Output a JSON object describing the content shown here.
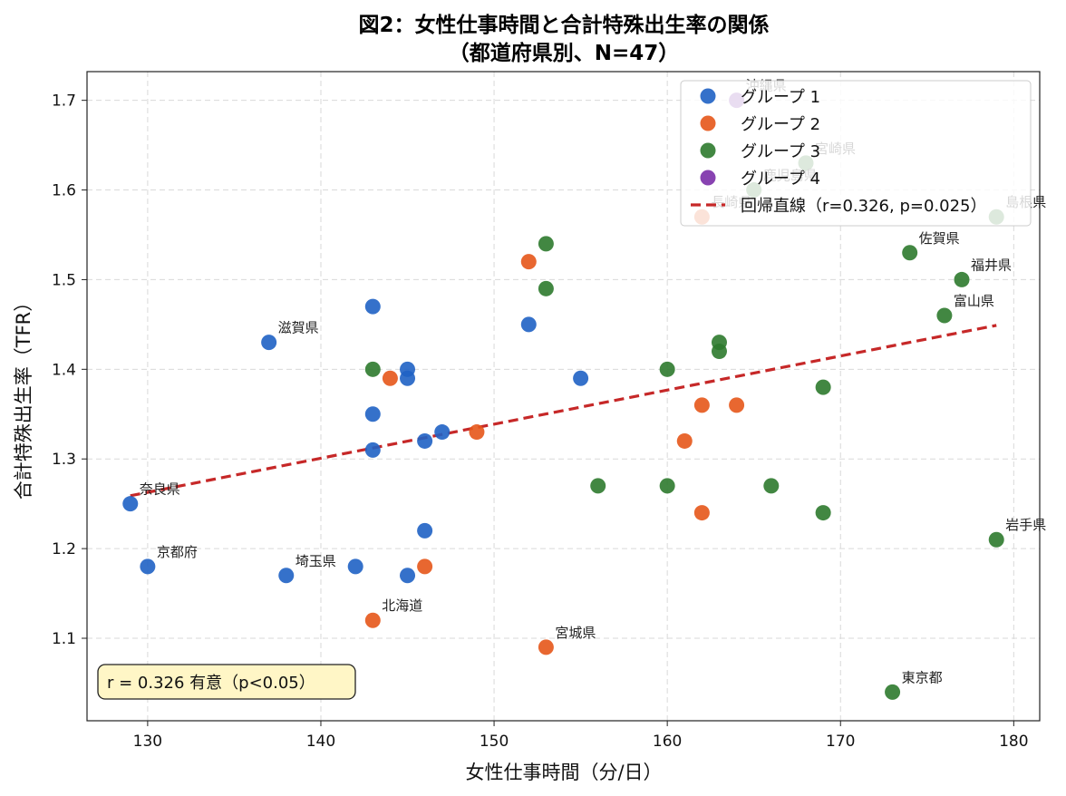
{
  "chart_data": {
    "type": "scatter",
    "title": "図2：女性仕事時間と合計特殊出生率の関係",
    "subtitle": "（都道府県別、N=47）",
    "xlabel": "女性仕事時間（分/日）",
    "ylabel": "合計特殊出生率（TFR）",
    "xlim": [
      126.5,
      181.5
    ],
    "ylim": [
      1.008,
      1.732
    ],
    "xticks": [
      130,
      140,
      150,
      160,
      170,
      180
    ],
    "yticks": [
      1.1,
      1.2,
      1.3,
      1.4,
      1.5,
      1.6,
      1.7
    ],
    "xtick_labels": [
      "130",
      "140",
      "150",
      "160",
      "170",
      "180"
    ],
    "ytick_labels": [
      "1.1",
      "1.2",
      "1.3",
      "1.4",
      "1.5",
      "1.6",
      "1.7"
    ],
    "grid": true,
    "legend_position": "top-right",
    "series": [
      {
        "name": "グループ 1",
        "color": "#1f62c4",
        "points": [
          {
            "x": 129,
            "y": 1.25,
            "label": "奈良県"
          },
          {
            "x": 130,
            "y": 1.18,
            "label": "京都府"
          },
          {
            "x": 137,
            "y": 1.43,
            "label": "滋賀県"
          },
          {
            "x": 138,
            "y": 1.17,
            "label": "埼玉県"
          },
          {
            "x": 142,
            "y": 1.18
          },
          {
            "x": 143,
            "y": 1.47
          },
          {
            "x": 143,
            "y": 1.35
          },
          {
            "x": 143,
            "y": 1.31
          },
          {
            "x": 145,
            "y": 1.4
          },
          {
            "x": 145,
            "y": 1.39
          },
          {
            "x": 145,
            "y": 1.17
          },
          {
            "x": 146,
            "y": 1.32
          },
          {
            "x": 146,
            "y": 1.22
          },
          {
            "x": 147,
            "y": 1.33
          },
          {
            "x": 152,
            "y": 1.45
          },
          {
            "x": 155,
            "y": 1.39
          }
        ]
      },
      {
        "name": "グループ 2",
        "color": "#e5561a",
        "points": [
          {
            "x": 143,
            "y": 1.12,
            "label": "北海道"
          },
          {
            "x": 144,
            "y": 1.39
          },
          {
            "x": 146,
            "y": 1.18
          },
          {
            "x": 149,
            "y": 1.33
          },
          {
            "x": 152,
            "y": 1.52
          },
          {
            "x": 153,
            "y": 1.09,
            "label": "宮城県"
          },
          {
            "x": 161,
            "y": 1.32
          },
          {
            "x": 162,
            "y": 1.36
          },
          {
            "x": 162,
            "y": 1.24
          },
          {
            "x": 162,
            "y": 1.57,
            "label": "長崎県"
          },
          {
            "x": 164,
            "y": 1.36
          }
        ]
      },
      {
        "name": "グループ 3",
        "color": "#2e7a2e",
        "points": [
          {
            "x": 143,
            "y": 1.4
          },
          {
            "x": 153,
            "y": 1.54
          },
          {
            "x": 153,
            "y": 1.49
          },
          {
            "x": 156,
            "y": 1.27
          },
          {
            "x": 160,
            "y": 1.4
          },
          {
            "x": 160,
            "y": 1.27
          },
          {
            "x": 163,
            "y": 1.43
          },
          {
            "x": 163,
            "y": 1.42
          },
          {
            "x": 165,
            "y": 1.6,
            "label": "鹿児島県"
          },
          {
            "x": 166,
            "y": 1.27
          },
          {
            "x": 168,
            "y": 1.63,
            "label": "宮崎県"
          },
          {
            "x": 169,
            "y": 1.38
          },
          {
            "x": 169,
            "y": 1.24
          },
          {
            "x": 173,
            "y": 1.04,
            "label": "東京都"
          },
          {
            "x": 174,
            "y": 1.53,
            "label": "佐賀県"
          },
          {
            "x": 176,
            "y": 1.46,
            "label": "富山県"
          },
          {
            "x": 177,
            "y": 1.5,
            "label": "福井県"
          },
          {
            "x": 179,
            "y": 1.21,
            "label": "岩手県"
          },
          {
            "x": 179,
            "y": 1.57,
            "label": "島根県"
          }
        ]
      },
      {
        "name": "グループ 4",
        "color": "#7b2fa8",
        "points": [
          {
            "x": 164,
            "y": 1.7,
            "label": "沖縄県"
          }
        ]
      }
    ],
    "regression": {
      "name": "回帰直線（r=0.326, p=0.025）",
      "color": "#c62828",
      "x": [
        129,
        179
      ],
      "y": [
        1.259,
        1.449
      ]
    },
    "annotation_box": "r = 0.326  有意（p<0.05）"
  }
}
